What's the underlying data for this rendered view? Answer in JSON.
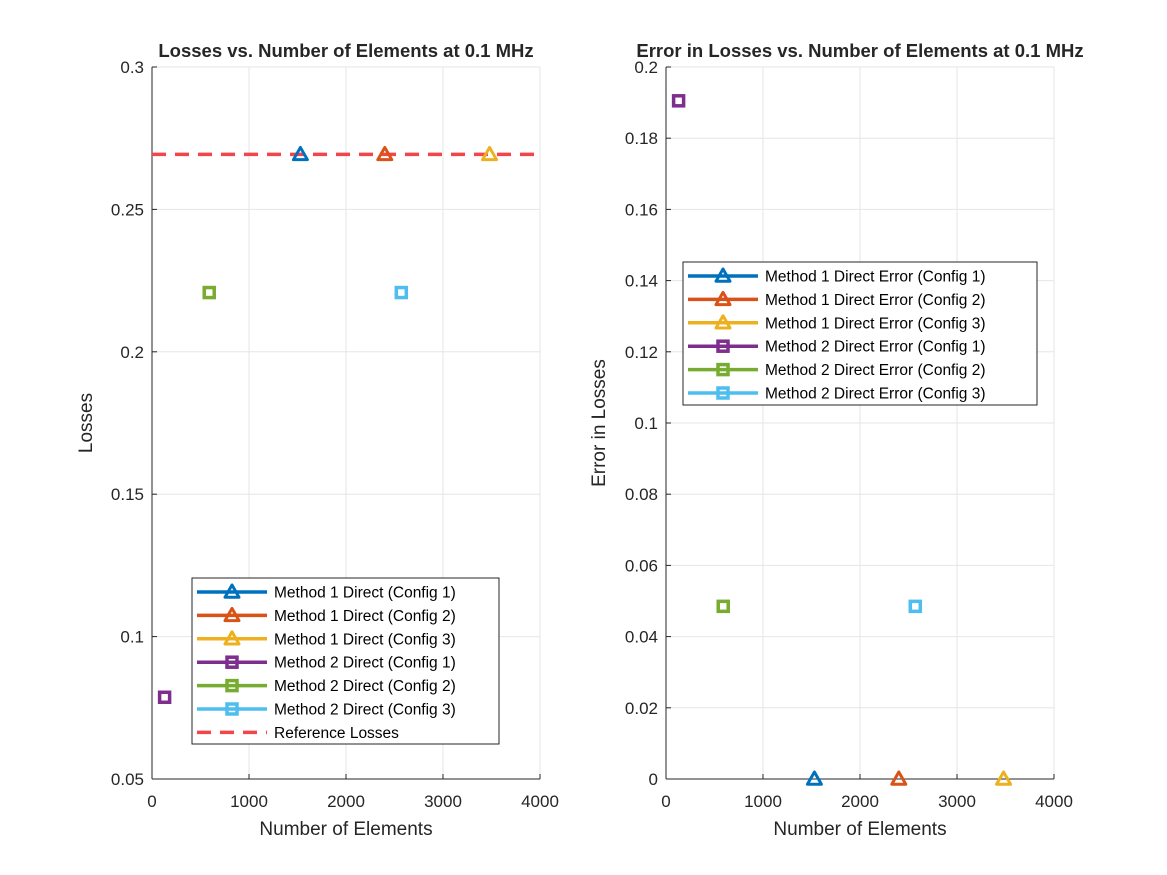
{
  "chart_data": [
    {
      "type": "scatter",
      "title": "Losses vs. Number of Elements at 0.1 MHz",
      "xlabel": "Number of Elements",
      "ylabel": "Losses",
      "xlim": [
        0,
        4000
      ],
      "ylim": [
        0.05,
        0.3
      ],
      "xticks": [
        "0",
        "1000",
        "2000",
        "3000",
        "4000"
      ],
      "yticks": [
        "0.05",
        "0.1",
        "0.15",
        "0.2",
        "0.25",
        "0.3"
      ],
      "grid": true,
      "legend_position": "bottom-center",
      "series": [
        {
          "name": "Method 1 Direct (Config 1)",
          "color": "#0072BD",
          "marker": "triangle",
          "points": [
            [
              1530,
              0.2693
            ]
          ]
        },
        {
          "name": "Method 1 Direct (Config 2)",
          "color": "#D95319",
          "marker": "triangle",
          "points": [
            [
              2400,
              0.2693
            ]
          ]
        },
        {
          "name": "Method 1 Direct (Config 3)",
          "color": "#EDB120",
          "marker": "triangle",
          "points": [
            [
              3480,
              0.2693
            ]
          ]
        },
        {
          "name": "Method 2 Direct (Config 1)",
          "color": "#7E2F8E",
          "marker": "square",
          "points": [
            [
              130,
              0.0787
            ]
          ]
        },
        {
          "name": "Method 2 Direct (Config 2)",
          "color": "#77AC30",
          "marker": "square",
          "points": [
            [
              590,
              0.2208
            ]
          ]
        },
        {
          "name": "Method 2 Direct (Config 3)",
          "color": "#4DBEEE",
          "marker": "square",
          "points": [
            [
              2570,
              0.2208
            ]
          ]
        }
      ],
      "reference": {
        "name": "Reference Losses",
        "color": "#F2464B",
        "value": 0.2693
      }
    },
    {
      "type": "scatter",
      "title": "Error in Losses vs. Number of Elements at 0.1 MHz",
      "xlabel": "Number of Elements",
      "ylabel": "Error in Losses",
      "xlim": [
        0,
        4000
      ],
      "ylim": [
        0,
        0.2
      ],
      "xticks": [
        "0",
        "1000",
        "2000",
        "3000",
        "4000"
      ],
      "yticks": [
        "0",
        "0.02",
        "0.04",
        "0.06",
        "0.08",
        "0.1",
        "0.12",
        "0.14",
        "0.16",
        "0.18",
        "0.2"
      ],
      "grid": true,
      "legend_position": "upper-center",
      "series": [
        {
          "name": "Method 1 Direct Error (Config 1)",
          "color": "#0072BD",
          "marker": "triangle",
          "points": [
            [
              1530,
              0.0
            ]
          ]
        },
        {
          "name": "Method 1 Direct Error (Config 2)",
          "color": "#D95319",
          "marker": "triangle",
          "points": [
            [
              2400,
              0.0
            ]
          ]
        },
        {
          "name": "Method 1 Direct Error (Config 3)",
          "color": "#EDB120",
          "marker": "triangle",
          "points": [
            [
              3480,
              0.0
            ]
          ]
        },
        {
          "name": "Method 2 Direct Error (Config 1)",
          "color": "#7E2F8E",
          "marker": "square",
          "points": [
            [
              130,
              0.1905
            ]
          ]
        },
        {
          "name": "Method 2 Direct Error (Config 2)",
          "color": "#77AC30",
          "marker": "square",
          "points": [
            [
              590,
              0.0485
            ]
          ]
        },
        {
          "name": "Method 2 Direct Error (Config 3)",
          "color": "#4DBEEE",
          "marker": "square",
          "points": [
            [
              2570,
              0.0485
            ]
          ]
        }
      ]
    }
  ]
}
